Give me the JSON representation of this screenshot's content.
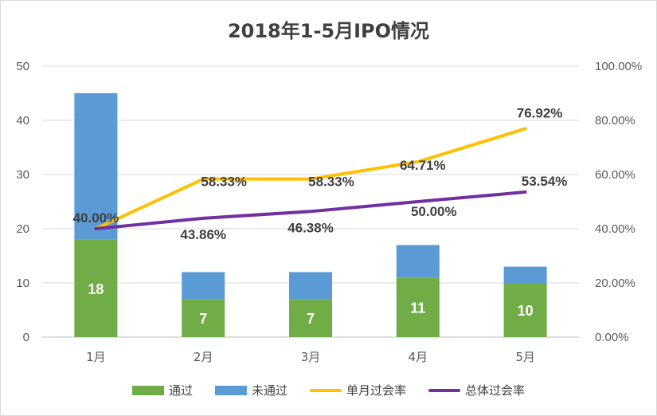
{
  "colors": {
    "passed": "#70ad47",
    "failed": "#5b9bd5",
    "monthly_rate": "#ffc000",
    "overall_rate": "#7030a0",
    "grid": "#d9d9d9",
    "text": "#404040"
  },
  "chart_data": {
    "type": "bar",
    "title": "2018年1-5月IPO情况",
    "categories": [
      "1月",
      "2月",
      "3月",
      "4月",
      "5月"
    ],
    "series": [
      {
        "name": "通过",
        "kind": "stacked-bar",
        "axis": "left",
        "values": [
          18,
          7,
          7,
          11,
          10
        ],
        "labels": [
          "18",
          "7",
          "7",
          "11",
          "10"
        ]
      },
      {
        "name": "未通过",
        "kind": "stacked-bar",
        "axis": "left",
        "values": [
          27,
          5,
          5,
          6,
          3
        ]
      },
      {
        "name": "单月过会率",
        "kind": "line",
        "axis": "right",
        "values": [
          40.0,
          58.33,
          58.33,
          64.71,
          76.92
        ],
        "labels": [
          "40.00%",
          "58.33%",
          "58.33%",
          "64.71%",
          "76.92%"
        ]
      },
      {
        "name": "总体过会率",
        "kind": "line",
        "axis": "right",
        "values": [
          40.0,
          43.86,
          46.38,
          50.0,
          53.54
        ],
        "labels": [
          "40.00%",
          "43.86%",
          "46.38%",
          "50.00%",
          "53.54%"
        ]
      }
    ],
    "ylim_left": [
      0,
      50
    ],
    "ylim_right": [
      0,
      100
    ],
    "left_ticks": [
      "0",
      "10",
      "20",
      "30",
      "40",
      "50"
    ],
    "right_ticks": [
      "0.00%",
      "20.00%",
      "40.00%",
      "60.00%",
      "80.00%",
      "100.00%"
    ],
    "grid": true,
    "legend_position": "bottom"
  }
}
